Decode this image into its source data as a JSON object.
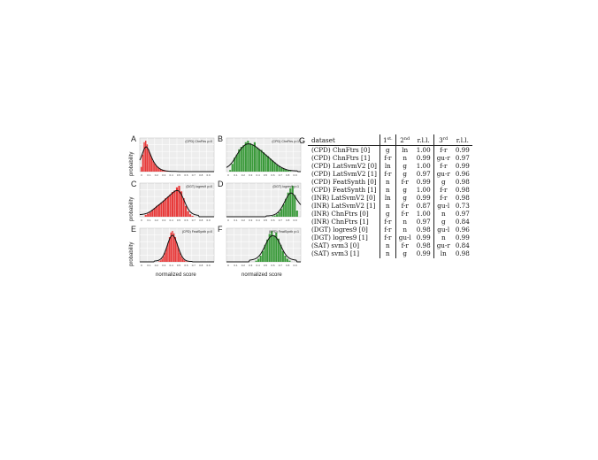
{
  "chart_data": [
    {
      "panel": "A",
      "type": "bar",
      "title": "(CPD) ChnFtrs y=0",
      "color": "#e83a3a",
      "x": [
        0.02,
        0.04,
        0.06,
        0.08,
        0.1,
        0.12,
        0.14,
        0.16,
        0.18,
        0.2,
        0.22,
        0.24,
        0.26,
        0.28,
        0.3,
        0.32,
        0.34,
        0.36,
        0.38,
        0.4,
        0.42,
        0.44,
        0.46
      ],
      "values": [
        0.15,
        0.55,
        0.95,
        1.0,
        0.88,
        0.72,
        0.58,
        0.45,
        0.34,
        0.26,
        0.19,
        0.14,
        0.1,
        0.07,
        0.05,
        0.04,
        0.03,
        0.02,
        0.015,
        0.01,
        0.01,
        0.005,
        0.005
      ],
      "fit_peak": 0.09,
      "ylabel": "probability",
      "xlim": [
        0,
        1
      ],
      "ticks": [
        "0",
        "0.1",
        "0.2",
        "0.3",
        "0.4",
        "0.5",
        "0.6",
        "0.7",
        "0.8",
        "0.9"
      ]
    },
    {
      "panel": "B",
      "type": "bar",
      "title": "(CPD) ChnFtrs y=1",
      "color": "#3a9a3a",
      "x": [
        0.05,
        0.08,
        0.11,
        0.14,
        0.17,
        0.2,
        0.23,
        0.26,
        0.29,
        0.32,
        0.35,
        0.38,
        0.41,
        0.44,
        0.47,
        0.5,
        0.53,
        0.56,
        0.59,
        0.62,
        0.65,
        0.68,
        0.71,
        0.74,
        0.77,
        0.8,
        0.83,
        0.86
      ],
      "values": [
        0.05,
        0.25,
        0.45,
        0.55,
        0.72,
        0.8,
        0.85,
        0.95,
        1.0,
        0.92,
        0.86,
        0.95,
        0.78,
        0.72,
        0.7,
        0.62,
        0.55,
        0.5,
        0.42,
        0.36,
        0.3,
        0.22,
        0.18,
        0.12,
        0.1,
        0.06,
        0.04,
        0.02
      ],
      "fit_peak": 0.3,
      "xlim": [
        0,
        1
      ],
      "ticks": [
        "0",
        "0.1",
        "0.2",
        "0.3",
        "0.4",
        "0.5",
        "0.6",
        "0.7",
        "0.8",
        "0.9"
      ]
    },
    {
      "panel": "C",
      "type": "bar",
      "title": "(DGT) logres9 y=0",
      "color": "#e83a3a",
      "x": [
        0.08,
        0.11,
        0.14,
        0.17,
        0.2,
        0.23,
        0.26,
        0.29,
        0.32,
        0.35,
        0.38,
        0.41,
        0.44,
        0.47,
        0.5,
        0.53,
        0.56,
        0.59,
        0.62,
        0.65,
        0.68,
        0.71
      ],
      "values": [
        0.06,
        0.1,
        0.15,
        0.22,
        0.28,
        0.35,
        0.4,
        0.45,
        0.52,
        0.6,
        0.65,
        0.72,
        0.8,
        0.85,
        0.95,
        1.0,
        0.82,
        0.6,
        0.35,
        0.18,
        0.08,
        0.03
      ],
      "fit_peak": 0.55,
      "ylabel": "probability",
      "xlim": [
        0,
        1
      ],
      "ticks": [
        "0",
        "0.1",
        "0.2",
        "0.3",
        "0.4",
        "0.5",
        "0.6",
        "0.7",
        "0.8",
        "0.9"
      ]
    },
    {
      "panel": "D",
      "type": "bar",
      "title": "(DGT) logres9 y=1",
      "color": "#3a9a3a",
      "x": [
        0.62,
        0.65,
        0.68,
        0.71,
        0.74,
        0.77,
        0.8,
        0.83,
        0.86,
        0.89,
        0.92,
        0.95
      ],
      "values": [
        0.02,
        0.04,
        0.08,
        0.15,
        0.25,
        0.4,
        0.58,
        0.78,
        0.92,
        1.0,
        0.7,
        0.2
      ],
      "fit_peak": 0.88,
      "xlim": [
        0,
        1
      ],
      "ticks": [
        "0",
        "0.1",
        "0.2",
        "0.3",
        "0.4",
        "0.5",
        "0.6",
        "0.7",
        "0.8",
        "0.9"
      ]
    },
    {
      "panel": "E",
      "type": "bar",
      "title": "(CPD) FeatSynth y=0",
      "color": "#e83a3a",
      "x": [
        0.26,
        0.28,
        0.3,
        0.32,
        0.34,
        0.36,
        0.38,
        0.4,
        0.42,
        0.44,
        0.46,
        0.48,
        0.5,
        0.52,
        0.54,
        0.56,
        0.58,
        0.6,
        0.62,
        0.64
      ],
      "values": [
        0.02,
        0.05,
        0.1,
        0.18,
        0.3,
        0.45,
        0.62,
        0.8,
        0.95,
        1.0,
        0.92,
        0.8,
        0.62,
        0.45,
        0.3,
        0.18,
        0.1,
        0.05,
        0.02,
        0.01
      ],
      "fit_peak": 0.45,
      "ylabel": "probability",
      "xlabel": "normalized score",
      "xlim": [
        0,
        1
      ],
      "ticks": [
        "0",
        "0.1",
        "0.2",
        "0.3",
        "0.4",
        "0.5",
        "0.6",
        "0.7",
        "0.8",
        "0.9"
      ]
    },
    {
      "panel": "F",
      "type": "bar",
      "title": "(CPD) FeatSynth y=1",
      "color": "#3a9a3a",
      "x": [
        0.4,
        0.43,
        0.46,
        0.49,
        0.52,
        0.55,
        0.58,
        0.61,
        0.64,
        0.67,
        0.7,
        0.73,
        0.76,
        0.79,
        0.82,
        0.85
      ],
      "values": [
        0.04,
        0.1,
        0.2,
        0.35,
        0.55,
        0.72,
        0.9,
        1.0,
        0.85,
        0.95,
        0.75,
        0.55,
        0.35,
        0.2,
        0.1,
        0.04
      ],
      "fit_peak": 0.62,
      "xlabel": "normalized score",
      "xlim": [
        0,
        1
      ],
      "ticks": [
        "0",
        "0.1",
        "0.2",
        "0.3",
        "0.4",
        "0.5",
        "0.6",
        "0.7",
        "0.8",
        "0.9"
      ]
    },
    {
      "panel": "G",
      "type": "table",
      "headers": [
        "dataset",
        "1",
        "2",
        "r.l.l.",
        "3",
        "r.l.l."
      ],
      "header_sups": [
        "",
        "st.",
        "nd",
        "",
        "rd",
        ""
      ],
      "rows": [
        [
          "(CPD) ChnFtrs [0]",
          "g",
          "ln",
          "1.00",
          "f-r",
          "0.99"
        ],
        [
          "(CPD) ChnFtrs [1]",
          "f-r",
          "n",
          "0.99",
          "gu-r",
          "0.97"
        ],
        [
          "(CPD) LatSvmV2 [0]",
          "ln",
          "g",
          "1.00",
          "f-r",
          "0.99"
        ],
        [
          "(CPD) LatSvmV2 [1]",
          "f-r",
          "g",
          "0.97",
          "gu-r",
          "0.96"
        ],
        [
          "(CPD) FeatSynth [0]",
          "n",
          "f-r",
          "0.99",
          "g",
          "0.98"
        ],
        [
          "(CPD) FeatSynth [1]",
          "n",
          "g",
          "1.00",
          "f-r",
          "0.98"
        ],
        [
          "(INR) LatSvmV2 [0]",
          "ln",
          "g",
          "0.99",
          "f-r",
          "0.98"
        ],
        [
          "(INR) LatSvmV2 [1]",
          "n",
          "f-r",
          "0.87",
          "gu-l",
          "0.73"
        ],
        [
          "(INR) ChnFtrs [0]",
          "g",
          "f-r",
          "1.00",
          "n",
          "0.97"
        ],
        [
          "(INR) ChnFtrs [1]",
          "f-r",
          "n",
          "0.97",
          "g",
          "0.84"
        ],
        [
          "(DGT) logres9 [0]",
          "f-r",
          "n",
          "0.98",
          "gu-l",
          "0.96"
        ],
        [
          "(DGT) logres9 [1]",
          "f-r",
          "gu-l",
          "0.99",
          "n",
          "0.99"
        ],
        [
          "(SAT) svm3 [0]",
          "n",
          "f-r",
          "0.98",
          "gu-r",
          "0.84"
        ],
        [
          "(SAT) svm3 [1]",
          "n",
          "g",
          "0.99",
          "ln",
          "0.98"
        ]
      ]
    }
  ],
  "letters": [
    "A",
    "B",
    "C",
    "D",
    "E",
    "F",
    "G"
  ],
  "ylabel": "probability",
  "xlabel": "normalized score"
}
